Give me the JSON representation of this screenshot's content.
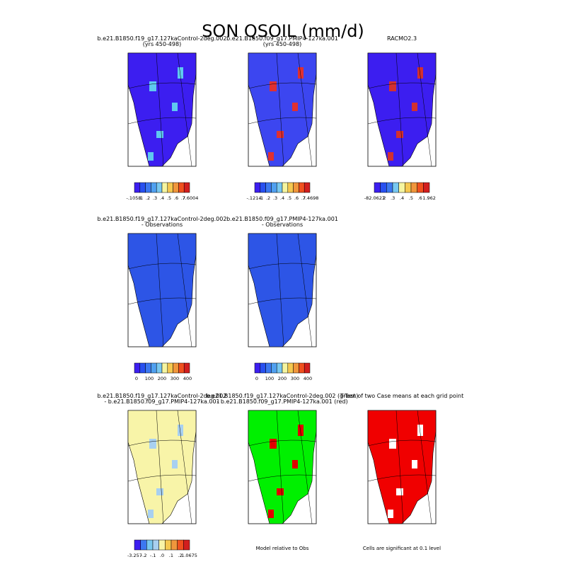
{
  "header": {
    "title": "SON QSOIL (mm/d)"
  },
  "panels": [
    {
      "lines": [
        "b.e21.B1850.f19_g17.127kaControl-2deg.002",
        "(yrs 450-498)"
      ],
      "fill": "#3c1ef0",
      "accent": "#5fc8f0",
      "colorbar": {
        "colors": [
          "#3c1ef0",
          "#2850f0",
          "#3c78f0",
          "#50a0f0",
          "#78c8f0",
          "#f5f5a0",
          "#f5c850",
          "#f0963c",
          "#f0501e",
          "#d21e1e"
        ],
        "labels": [
          "-.1058",
          ".1",
          ".2",
          ".3",
          ".4",
          ".5",
          ".6",
          ".7",
          "7.6004"
        ]
      }
    },
    {
      "lines": [
        "b.e21.B1850.f09_g17.PMIP4-127ka.001",
        "(yrs 450-498)"
      ],
      "fill": "#3c46f0",
      "accent": "#e03030",
      "colorbar": {
        "colors": [
          "#3c1ef0",
          "#2850f0",
          "#3c78f0",
          "#50a0f0",
          "#78c8f0",
          "#f5f5a0",
          "#f5c850",
          "#f0963c",
          "#f0501e",
          "#d21e1e"
        ],
        "labels": [
          "-.1214",
          ".1",
          ".2",
          ".3",
          ".4",
          ".5",
          ".6",
          ".7",
          "7.4698"
        ]
      }
    },
    {
      "lines": [
        "RACMO2.3"
      ],
      "fill": "#3c1ef0",
      "accent": "#d23030",
      "colorbar": {
        "colors": [
          "#3c1ef0",
          "#2850f0",
          "#3c78f0",
          "#78c8f0",
          "#f5f5a0",
          "#f5c850",
          "#f0963c",
          "#f0501e",
          "#d21e1e"
        ],
        "labels": [
          "-82.0627",
          ".2",
          ".3",
          ".4",
          ".5",
          ".6",
          "1.962"
        ]
      }
    },
    {
      "lines": [
        "b.e21.B1850.f19_g17.127kaControl-2deg.002",
        "- Observations"
      ],
      "fill": "#2d55e6",
      "accent": "#2d55e6",
      "colorbar": {
        "colors": [
          "#3c1ef0",
          "#2850f0",
          "#3c78f0",
          "#50a0f0",
          "#78c8f0",
          "#f5f5a0",
          "#f5c850",
          "#f0963c",
          "#f0501e",
          "#d21e1e"
        ],
        "labels": [
          "0",
          "100",
          "200",
          "300",
          "400"
        ]
      }
    },
    {
      "lines": [
        "b.e21.B1850.f09_g17.PMIP4-127ka.001",
        "- Observations"
      ],
      "fill": "#2d55e6",
      "accent": "#2d55e6",
      "colorbar": {
        "colors": [
          "#3c1ef0",
          "#2850f0",
          "#3c78f0",
          "#50a0f0",
          "#78c8f0",
          "#f5f5a0",
          "#f5c850",
          "#f0963c",
          "#f0501e",
          "#d21e1e"
        ],
        "labels": [
          "0",
          "100",
          "200",
          "300",
          "400"
        ]
      }
    },
    null,
    {
      "lines": [
        "b.e21.B1850.f19_g17.127kaControl-2deg.002",
        "- b.e21.B1850.f09_g17.PMIP4-127ka.001"
      ],
      "fill": "#f8f4a8",
      "accent": "#a8d0f0",
      "colorbar": {
        "colors": [
          "#3c1ef0",
          "#3c78f0",
          "#78c8f0",
          "#a8d0f0",
          "#f8f4a8",
          "#f5c850",
          "#f0963c",
          "#f0501e",
          "#d21e1e"
        ],
        "labels": [
          "-3.257",
          "-.2",
          "-.1",
          ".0",
          ".1",
          ".2",
          "1.0675"
        ]
      }
    },
    {
      "lines": [
        "b.e21.B1850.f19_g17.127kaControl-2deg.002 (green)",
        "- b.e21.B1850.f09_g17.PMIP4-127ka.001 (red)"
      ],
      "fill": "#00f000",
      "accent": "#e00000",
      "footer": "Model relative to Obs"
    },
    {
      "lines": [
        "T-Test of two Case means at each grid point"
      ],
      "fill": "#f00000",
      "accent": "#ffffff",
      "footer": "Cells are significant at 0.1 level"
    }
  ]
}
